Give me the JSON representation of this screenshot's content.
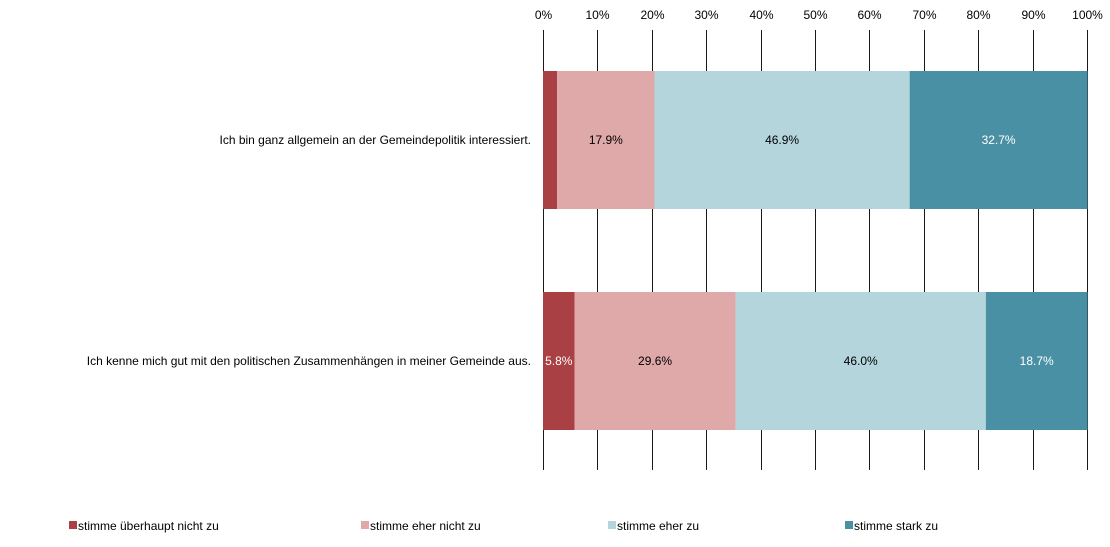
{
  "chart_data": {
    "type": "bar",
    "orientation": "horizontal",
    "stacked": "percent",
    "title": "",
    "xlabel": "",
    "ylabel": "",
    "xlim": [
      0,
      100
    ],
    "x_ticks": [
      "0%",
      "10%",
      "20%",
      "30%",
      "40%",
      "50%",
      "60%",
      "70%",
      "80%",
      "90%",
      "100%"
    ],
    "grid": true,
    "legend_position": "bottom",
    "categories": [
      "Ich bin ganz allgemein an der Gemeindepolitik interessiert.",
      "Ich kenne mich gut mit den politischen Zusammenhängen in meiner Gemeinde aus."
    ],
    "series": [
      {
        "name": "stimme überhaupt nicht zu",
        "color": "#a94044",
        "label_color": "#ffffff",
        "values": [
          2.6,
          5.8
        ],
        "labels": [
          "",
          "5.8%"
        ]
      },
      {
        "name": "stimme eher nicht zu",
        "color": "#dfa8a9",
        "label_color": "#000000",
        "values": [
          17.9,
          29.6
        ],
        "labels": [
          "17.9%",
          "29.6%"
        ]
      },
      {
        "name": "stimme eher zu",
        "color": "#b5d5dc",
        "label_color": "#000000",
        "values": [
          46.9,
          46.0
        ],
        "labels": [
          "46.9%",
          "46.0%"
        ]
      },
      {
        "name": "stimme stark zu",
        "color": "#4a90a4",
        "label_color": "#ffffff",
        "values": [
          32.7,
          18.7
        ],
        "labels": [
          "32.7%",
          "18.7%"
        ]
      }
    ]
  }
}
